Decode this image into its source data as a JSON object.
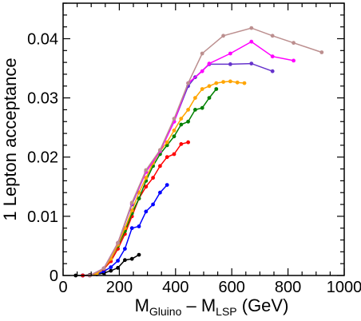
{
  "chart_data": {
    "type": "line",
    "xlabel": {
      "prefix": "M",
      "sub1": "Gluino",
      "mid": " – M",
      "sub2": "LSP",
      "suffix": "  (GeV)"
    },
    "ylabel": "1 Lepton acceptance",
    "xlim": [
      0,
      1000
    ],
    "ylim": [
      0,
      0.046
    ],
    "xticks": [
      {
        "value": 0,
        "label": "0"
      },
      {
        "value": 200,
        "label": "200"
      },
      {
        "value": 400,
        "label": "400"
      },
      {
        "value": 600,
        "label": "600"
      },
      {
        "value": 800,
        "label": "800"
      },
      {
        "value": 1000,
        "label": "1000"
      }
    ],
    "yticks": [
      {
        "value": 0,
        "label": "0"
      },
      {
        "value": 0.01,
        "label": "0.01"
      },
      {
        "value": 0.02,
        "label": "0.02"
      },
      {
        "value": 0.03,
        "label": "0.03"
      },
      {
        "value": 0.04,
        "label": "0.04"
      }
    ],
    "grid": false,
    "legend": "none",
    "series": [
      {
        "color": "#000000",
        "x": [
          45,
          70,
          95,
          120,
          145,
          170,
          195,
          220,
          245,
          270
        ],
        "y": [
          0.0,
          0.0,
          0.0001,
          0.0002,
          0.0004,
          0.0008,
          0.0013,
          0.0026,
          0.0028,
          0.0035
        ]
      },
      {
        "color": "#0000ff",
        "x": [
          70,
          95,
          120,
          145,
          170,
          195,
          220,
          245,
          270,
          295,
          320,
          345,
          370
        ],
        "y": [
          0.0,
          0.0,
          0.0002,
          0.0007,
          0.0014,
          0.0025,
          0.0045,
          0.008,
          0.0083,
          0.0108,
          0.012,
          0.014,
          0.0153
        ]
      },
      {
        "color": "#ff0000",
        "x": [
          70,
          95,
          120,
          145,
          170,
          195,
          220,
          245,
          270,
          295,
          320,
          345,
          370,
          395,
          420,
          445
        ],
        "y": [
          0.0,
          0.0,
          0.0003,
          0.0011,
          0.0024,
          0.0045,
          0.007,
          0.01,
          0.013,
          0.015,
          0.0165,
          0.0185,
          0.02,
          0.0205,
          0.0222,
          0.0225
        ]
      },
      {
        "color": "#008000",
        "x": [
          95,
          120,
          145,
          170,
          195,
          220,
          245,
          270,
          295,
          320,
          345,
          370,
          395,
          420,
          445,
          470,
          495,
          520,
          545
        ],
        "y": [
          0.0,
          0.0003,
          0.0012,
          0.0028,
          0.005,
          0.0075,
          0.0105,
          0.013,
          0.016,
          0.0185,
          0.0205,
          0.022,
          0.0235,
          0.0255,
          0.026,
          0.028,
          0.0283,
          0.03,
          0.0315
        ]
      },
      {
        "color": "#ffa500",
        "x": [
          95,
          120,
          145,
          170,
          195,
          220,
          245,
          270,
          295,
          320,
          345,
          370,
          395,
          420,
          445,
          470,
          495,
          520,
          545,
          570,
          595,
          620,
          645
        ],
        "y": [
          0.0,
          0.0003,
          0.0012,
          0.0028,
          0.0052,
          0.008,
          0.011,
          0.014,
          0.0165,
          0.019,
          0.021,
          0.0225,
          0.0245,
          0.0265,
          0.028,
          0.03,
          0.0315,
          0.032,
          0.0325,
          0.0327,
          0.0328,
          0.0326,
          0.0325
        ]
      },
      {
        "color": "#6633cc",
        "x": [
          95,
          145,
          195,
          245,
          295,
          345,
          395,
          445,
          470,
          520,
          595,
          670,
          745
        ],
        "y": [
          0.0,
          0.0012,
          0.0055,
          0.012,
          0.0175,
          0.021,
          0.026,
          0.032,
          0.0335,
          0.0357,
          0.0357,
          0.0358,
          0.0345
        ]
      },
      {
        "color": "#ff00ff",
        "x": [
          95,
          145,
          195,
          245,
          295,
          345,
          395,
          445,
          495,
          520,
          595,
          670,
          745,
          820
        ],
        "y": [
          0.0,
          0.0012,
          0.0055,
          0.0122,
          0.0175,
          0.021,
          0.026,
          0.0325,
          0.0345,
          0.0358,
          0.0375,
          0.0395,
          0.037,
          0.0363
        ]
      },
      {
        "color": "#bc8f8f",
        "x": [
          95,
          145,
          195,
          245,
          295,
          345,
          395,
          445,
          495,
          570,
          670,
          745,
          820,
          920
        ],
        "y": [
          0.0,
          0.0012,
          0.0055,
          0.0123,
          0.0178,
          0.0212,
          0.0265,
          0.0325,
          0.0375,
          0.0405,
          0.0418,
          0.0405,
          0.0393,
          0.0377
        ]
      }
    ]
  }
}
